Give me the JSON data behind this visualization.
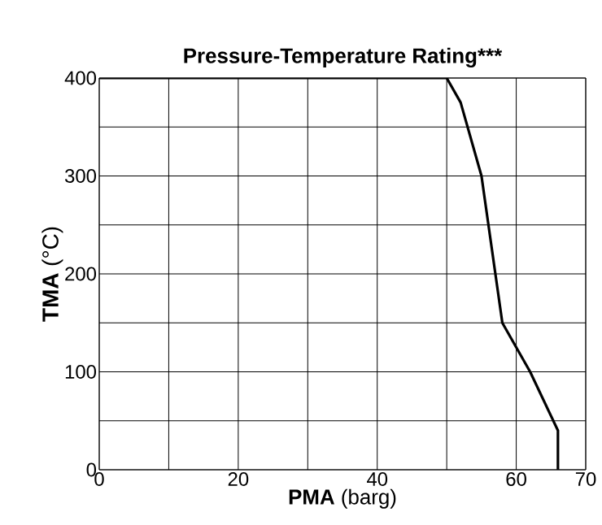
{
  "chart_data": {
    "type": "line",
    "title": "Pressure-Temperature Rating***",
    "xlabel": "**PMA** (barg)",
    "ylabel": "**TMA** (°C)",
    "x": [
      0,
      50,
      52,
      55,
      58,
      62,
      66,
      66
    ],
    "series": [
      {
        "color": "#000000",
        "values": [
          400,
          400,
          375,
          300,
          150,
          100,
          40,
          0
        ]
      }
    ],
    "xlim": [
      0,
      70
    ],
    "ylim": [
      0,
      400
    ],
    "xticks": [
      0,
      {
        "value": 10,
        "label": null
      },
      20,
      {
        "value": 30,
        "label": null
      },
      40,
      {
        "value": 50,
        "label": null
      },
      60,
      70
    ],
    "yticks": [
      0,
      {
        "value": 50,
        "label": null
      },
      100,
      {
        "value": 150,
        "label": null
      },
      200,
      {
        "value": 250,
        "label": null
      },
      300,
      {
        "value": 350,
        "label": null
      },
      400
    ],
    "grid": true,
    "marker": "none",
    "line_style": "solid"
  }
}
